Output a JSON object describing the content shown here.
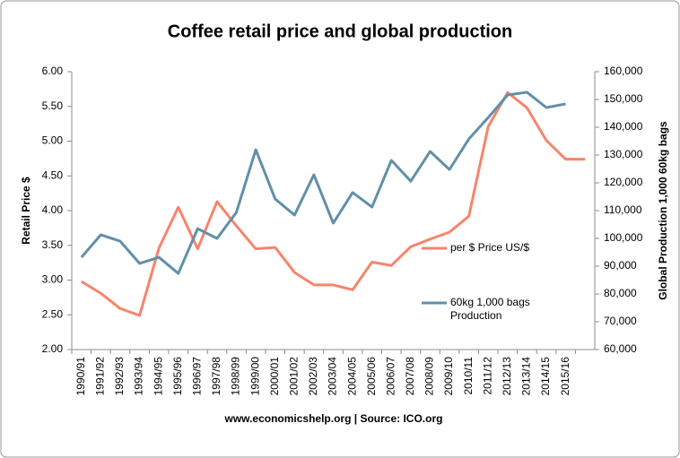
{
  "chart_data": {
    "type": "line",
    "title": "Coffee retail price and global production",
    "y_label": "Retail Price $",
    "y2_label": "Global Production 1,000 60kg bags",
    "source": "www.economicshelp.org | Source: ICO.org",
    "categories": [
      "1990/91",
      "1991/92",
      "1992/93",
      "1993/94",
      "1994/95",
      "1995/96",
      "1996/97",
      "1997/98",
      "1998/99",
      "1999/00",
      "2000/01",
      "2001/02",
      "2002/03",
      "2003/04",
      "2004/05",
      "2005/06",
      "2006/07",
      "2007/08",
      "2008/09",
      "2009/10",
      "2010/11",
      "2011/12",
      "2012/13",
      "2013/14",
      "2014/15",
      "2015/16",
      null
    ],
    "series": [
      {
        "name": "per $ Price US/$",
        "color": "#f7846d",
        "axis": "y",
        "values": [
          2.98,
          2.81,
          2.59,
          2.49,
          3.46,
          4.05,
          3.45,
          4.13,
          3.78,
          3.45,
          3.47,
          3.11,
          2.93,
          2.93,
          2.86,
          3.26,
          3.21,
          3.48,
          3.59,
          3.69,
          3.92,
          5.21,
          5.7,
          5.48,
          5.01,
          4.74,
          4.74
        ]
      },
      {
        "name": "60kg 1,000 bags Production",
        "color": "#6190a8",
        "axis": "y2",
        "values": [
          93200,
          101300,
          99000,
          91000,
          93200,
          87400,
          103500,
          100000,
          109400,
          131900,
          114200,
          108400,
          122900,
          105500,
          116500,
          111300,
          128100,
          120600,
          131300,
          124800,
          135800,
          143500,
          151600,
          152600,
          147100,
          148400,
          null
        ]
      }
    ],
    "ylim": [
      2,
      6
    ],
    "yticks": [
      {
        "value": 2,
        "label": "2.00"
      },
      {
        "value": 2.5,
        "label": "2.50"
      },
      {
        "value": 3,
        "label": "3.00"
      },
      {
        "value": 3.5,
        "label": "3.50"
      },
      {
        "value": 4,
        "label": "4.00"
      },
      {
        "value": 4.5,
        "label": "4.50"
      },
      {
        "value": 5,
        "label": "5.00"
      },
      {
        "value": 5.5,
        "label": "5.50"
      },
      {
        "value": 6,
        "label": "6.00"
      }
    ],
    "y2lim": [
      60000,
      160000
    ],
    "y2ticks": [
      {
        "value": 60000,
        "label": "60,000"
      },
      {
        "value": 70000,
        "label": "70,000"
      },
      {
        "value": 80000,
        "label": "80,000"
      },
      {
        "value": 90000,
        "label": "90,000"
      },
      {
        "value": 100000,
        "label": "100,000"
      },
      {
        "value": 110000,
        "label": "110,000"
      },
      {
        "value": 120000,
        "label": "120,000"
      },
      {
        "value": 130000,
        "label": "130,000"
      },
      {
        "value": 140000,
        "label": "140,000"
      },
      {
        "value": 150000,
        "label": "150,000"
      },
      {
        "value": 160000,
        "label": "160,000"
      }
    ],
    "grid": false
  }
}
